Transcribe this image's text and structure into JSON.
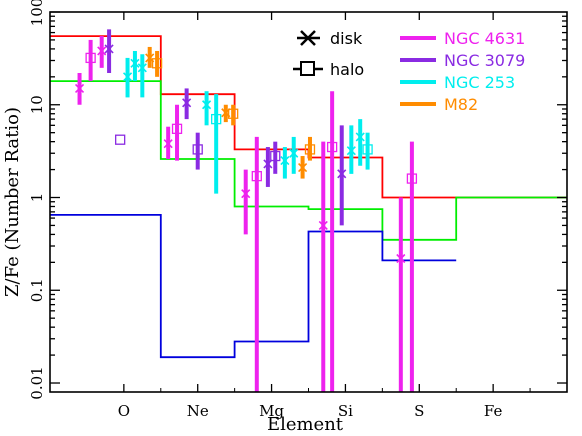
{
  "chart_data": {
    "type": "scatter",
    "xlabel": "Element",
    "ylabel": "Z/Fe (Number Ratio)",
    "categories": [
      "O",
      "Ne",
      "Mg",
      "Si",
      "S",
      "Fe"
    ],
    "y_scale": "log",
    "ylim": [
      0.008,
      100
    ],
    "y_ticks": [
      0.01,
      0.1,
      1,
      10,
      100
    ],
    "y_tick_labels": [
      "0.01",
      "0.1",
      "1",
      "10",
      "100"
    ],
    "grid": false,
    "legend_symbols": [
      {
        "label": "disk",
        "marker": "x"
      },
      {
        "label": "halo",
        "marker": "square"
      }
    ],
    "legend_galaxies": [
      {
        "name": "NGC 4631",
        "color": "#ee22ee"
      },
      {
        "name": "NGC 3079",
        "color": "#8a2be2"
      },
      {
        "name": "NGC 253",
        "color": "#00eeee"
      },
      {
        "name": "M82",
        "color": "#ff8c00"
      }
    ],
    "models": [
      {
        "color": "#ff0000",
        "steps": [
          [
            0.0,
            1.5,
            55
          ],
          [
            1.5,
            2.5,
            13
          ],
          [
            2.5,
            3.5,
            3.3
          ],
          [
            3.5,
            4.5,
            2.7
          ],
          [
            4.5,
            5.5,
            1.0
          ],
          [
            5.5,
            7.0,
            1.0
          ]
        ]
      },
      {
        "color": "#00ee00",
        "steps": [
          [
            0.0,
            1.5,
            18
          ],
          [
            1.5,
            2.5,
            2.6
          ],
          [
            2.5,
            3.5,
            0.8
          ],
          [
            3.5,
            4.5,
            0.75
          ],
          [
            4.5,
            5.5,
            0.35
          ],
          [
            5.5,
            7.0,
            1.0
          ]
        ]
      },
      {
        "color": "#0000dd",
        "steps": [
          [
            0.0,
            1.5,
            0.65
          ],
          [
            1.5,
            2.5,
            0.019
          ],
          [
            2.5,
            3.5,
            0.028
          ],
          [
            3.5,
            4.5,
            0.43
          ],
          [
            4.5,
            5.5,
            0.21
          ]
        ]
      }
    ],
    "measurements": [
      {
        "galaxy": "NGC 4631",
        "marker": "x",
        "x": 0.4,
        "y": 15,
        "low": 10,
        "high": 22
      },
      {
        "galaxy": "NGC 4631",
        "marker": "square",
        "x": 0.55,
        "y": 32,
        "low": 18,
        "high": 50
      },
      {
        "galaxy": "NGC 4631",
        "marker": "x",
        "x": 0.7,
        "y": 38,
        "low": 25,
        "high": 55
      },
      {
        "galaxy": "NGC 3079",
        "marker": "x",
        "x": 0.8,
        "y": 40,
        "low": 22,
        "high": 65
      },
      {
        "galaxy": "NGC 3079",
        "marker": "square",
        "x": 0.95,
        "y": 4.2,
        "low": 4.2,
        "high": 4.2
      },
      {
        "galaxy": "NGC 253",
        "marker": "x",
        "x": 1.05,
        "y": 20,
        "low": 12,
        "high": 32
      },
      {
        "galaxy": "NGC 253",
        "marker": "x",
        "x": 1.15,
        "y": 28,
        "low": 18,
        "high": 38
      },
      {
        "galaxy": "NGC 253",
        "marker": "x",
        "x": 1.25,
        "y": 25,
        "low": 12,
        "high": 35
      },
      {
        "galaxy": "M82",
        "marker": "x",
        "x": 1.35,
        "y": 32,
        "low": 25,
        "high": 42
      },
      {
        "galaxy": "M82",
        "marker": "square",
        "x": 1.45,
        "y": 28,
        "low": 20,
        "high": 38
      },
      {
        "galaxy": "NGC 4631",
        "marker": "x",
        "x": 1.6,
        "y": 3.8,
        "low": 2.6,
        "high": 5.8
      },
      {
        "galaxy": "NGC 4631",
        "marker": "square",
        "x": 1.72,
        "y": 5.5,
        "low": 2.5,
        "high": 10
      },
      {
        "galaxy": "NGC 3079",
        "marker": "x",
        "x": 1.85,
        "y": 10.5,
        "low": 7,
        "high": 15
      },
      {
        "galaxy": "NGC 3079",
        "marker": "square",
        "x": 2.0,
        "y": 3.3,
        "low": 2.0,
        "high": 5
      },
      {
        "galaxy": "NGC 253",
        "marker": "x",
        "x": 2.12,
        "y": 10,
        "low": 6,
        "high": 14
      },
      {
        "galaxy": "NGC 253",
        "marker": "square",
        "x": 2.25,
        "y": 7,
        "low": 1.1,
        "high": 13
      },
      {
        "galaxy": "M82",
        "marker": "x",
        "x": 2.38,
        "y": 8.2,
        "low": 6.5,
        "high": 10
      },
      {
        "galaxy": "M82",
        "marker": "square",
        "x": 2.48,
        "y": 8.0,
        "low": 6,
        "high": 10
      },
      {
        "galaxy": "NGC 4631",
        "marker": "x",
        "x": 2.65,
        "y": 1.1,
        "low": 0.4,
        "high": 2.0
      },
      {
        "galaxy": "NGC 4631",
        "marker": "square",
        "x": 2.8,
        "y": 1.7,
        "low": 0.008,
        "high": 4.5
      },
      {
        "galaxy": "NGC 3079",
        "marker": "x",
        "x": 2.95,
        "y": 2.3,
        "low": 1.3,
        "high": 3.5
      },
      {
        "galaxy": "NGC 3079",
        "marker": "square",
        "x": 3.05,
        "y": 2.8,
        "low": 1.8,
        "high": 4
      },
      {
        "galaxy": "NGC 253",
        "marker": "x",
        "x": 3.18,
        "y": 2.5,
        "low": 1.6,
        "high": 3.5
      },
      {
        "galaxy": "NGC 253",
        "marker": "x",
        "x": 3.3,
        "y": 3.0,
        "low": 1.8,
        "high": 4.5
      },
      {
        "galaxy": "M82",
        "marker": "x",
        "x": 3.42,
        "y": 2.1,
        "low": 1.6,
        "high": 2.8
      },
      {
        "galaxy": "M82",
        "marker": "square",
        "x": 3.52,
        "y": 3.3,
        "low": 2.5,
        "high": 4.5
      },
      {
        "galaxy": "NGC 4631",
        "marker": "x",
        "x": 3.7,
        "y": 0.5,
        "low": 0.008,
        "high": 4.0
      },
      {
        "galaxy": "NGC 4631",
        "marker": "square",
        "x": 3.82,
        "y": 3.5,
        "low": 0.008,
        "high": 14
      },
      {
        "galaxy": "NGC 3079",
        "marker": "x",
        "x": 3.95,
        "y": 1.8,
        "low": 0.5,
        "high": 6
      },
      {
        "galaxy": "NGC 253",
        "marker": "x",
        "x": 4.08,
        "y": 3.2,
        "low": 1.8,
        "high": 6
      },
      {
        "galaxy": "NGC 253",
        "marker": "x",
        "x": 4.2,
        "y": 4.5,
        "low": 2.2,
        "high": 7
      },
      {
        "galaxy": "NGC 253",
        "marker": "square",
        "x": 4.3,
        "y": 3.3,
        "low": 2.0,
        "high": 5
      },
      {
        "galaxy": "NGC 4631",
        "marker": "x",
        "x": 4.75,
        "y": 0.22,
        "low": 0.008,
        "high": 1.0
      },
      {
        "galaxy": "NGC 4631",
        "marker": "square",
        "x": 4.9,
        "y": 1.6,
        "low": 0.008,
        "high": 4
      }
    ]
  }
}
